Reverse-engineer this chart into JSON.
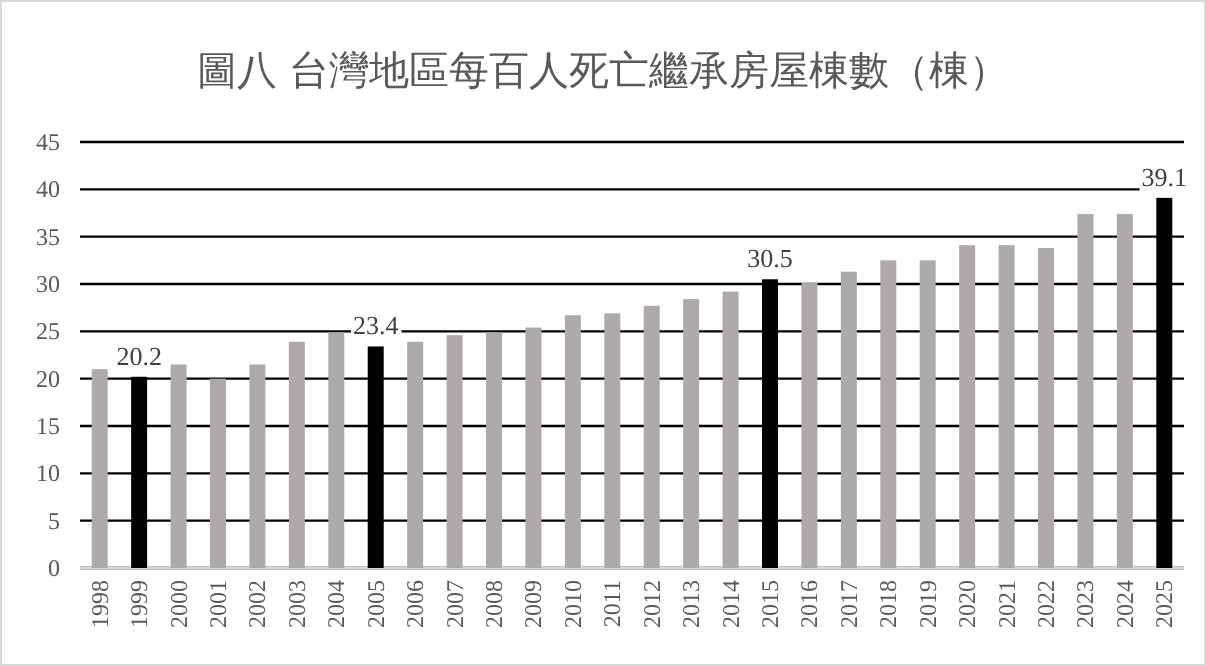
{
  "chart_data": {
    "type": "bar",
    "title": "圖八  台灣地區每百人死亡繼承房屋棟數（棟）",
    "categories": [
      "1998",
      "1999",
      "2000",
      "2001",
      "2002",
      "2003",
      "2004",
      "2005",
      "2006",
      "2007",
      "2008",
      "2009",
      "2010",
      "2011",
      "2012",
      "2013",
      "2014",
      "2015",
      "2016",
      "2017",
      "2018",
      "2019",
      "2020",
      "2021",
      "2022",
      "2023",
      "2024",
      "2025"
    ],
    "values": [
      21.0,
      20.2,
      21.5,
      20.0,
      21.5,
      23.9,
      24.9,
      23.4,
      23.9,
      24.6,
      24.9,
      25.4,
      26.7,
      26.9,
      27.7,
      28.4,
      29.2,
      30.5,
      30.1,
      31.3,
      32.5,
      32.5,
      34.1,
      34.1,
      33.8,
      37.4,
      37.4,
      39.1
    ],
    "colors": [
      "#aeaaaa",
      "#000000",
      "#aeaaaa",
      "#aeaaaa",
      "#aeaaaa",
      "#aeaaaa",
      "#aeaaaa",
      "#000000",
      "#aeaaaa",
      "#aeaaaa",
      "#aeaaaa",
      "#aeaaaa",
      "#aeaaaa",
      "#aeaaaa",
      "#aeaaaa",
      "#aeaaaa",
      "#aeaaaa",
      "#000000",
      "#aeaaaa",
      "#aeaaaa",
      "#aeaaaa",
      "#aeaaaa",
      "#aeaaaa",
      "#aeaaaa",
      "#aeaaaa",
      "#aeaaaa",
      "#aeaaaa",
      "#000000"
    ],
    "value_labels": [
      null,
      "20.2",
      null,
      null,
      null,
      null,
      null,
      "23.4",
      null,
      null,
      null,
      null,
      null,
      null,
      null,
      null,
      null,
      "30.5",
      null,
      null,
      null,
      null,
      null,
      null,
      null,
      null,
      null,
      "39.1"
    ],
    "ylim": [
      0,
      45
    ],
    "yticks": [
      0,
      5,
      10,
      15,
      20,
      25,
      30,
      35,
      40,
      45
    ],
    "grid": "y"
  }
}
